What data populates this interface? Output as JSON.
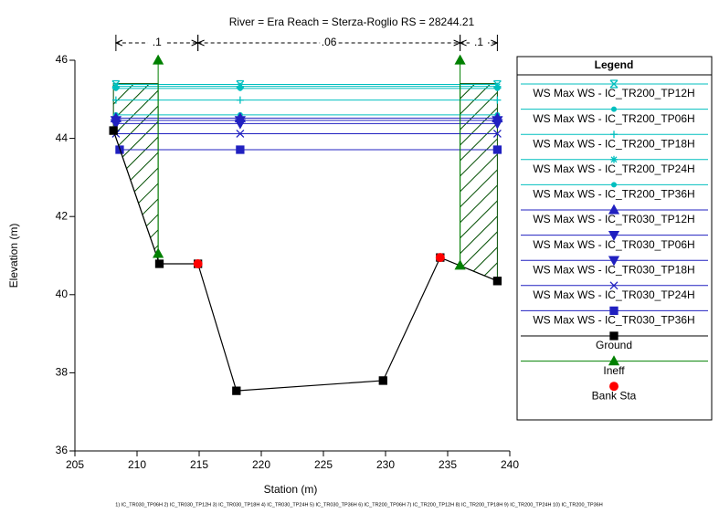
{
  "chart_data": {
    "type": "line",
    "title": "River = Era   Reach = Sterza-Roglio        RS = 28244.21",
    "x_label": "Station (m)",
    "y_label": "Elevation (m)",
    "xlim": [
      205,
      240
    ],
    "ylim": [
      36,
      46
    ],
    "xticks": [
      205,
      210,
      215,
      220,
      225,
      230,
      235,
      240
    ],
    "yticks": [
      36,
      38,
      40,
      42,
      44,
      46
    ],
    "legend_title": "Legend",
    "footer": "1) IC_TR030_TP06H   2) IC_TR030_TP12H   3) IC_TR030_TP18H   4) IC_TR030_TP24H   5) IC_TR030_TP36H   6) IC_TR200_TP06H   7) IC_TR200_TP12H   8) IC_TR200_TP18H   9) IC_TR200_TP24H   10) IC_TR200_TP36H",
    "mannings_n": [
      {
        "label": ".1",
        "x": [
          208.3,
          214.9
        ]
      },
      {
        "label": ".06",
        "x": [
          214.9,
          236.0
        ]
      },
      {
        "label": ".1",
        "x": [
          236.0,
          239.0
        ]
      }
    ],
    "ineffective_elevation": 45.4,
    "series": [
      {
        "name": "WS Max WS - IC_TR200_TP12H",
        "color": "#00bfbf",
        "marker": "xstar",
        "x": [
          208.3,
          218.3,
          239.0
        ],
        "values": [
          45.38,
          45.38,
          45.38
        ]
      },
      {
        "name": "WS Max WS - IC_TR200_TP06H",
        "color": "#00bfbf",
        "marker": "circle",
        "x": [
          208.3,
          218.3,
          239.0
        ],
        "values": [
          45.28,
          45.28,
          45.28
        ]
      },
      {
        "name": "WS Max WS - IC_TR200_TP18H",
        "color": "#00bfbf",
        "marker": "plus",
        "x": [
          208.3,
          218.3,
          239.0
        ],
        "values": [
          44.98,
          44.98,
          44.98
        ]
      },
      {
        "name": "WS Max WS - IC_TR200_TP24H",
        "color": "#00bfbf",
        "marker": "star",
        "x": [
          208.3,
          218.3,
          239.0
        ],
        "values": [
          45.33,
          45.33,
          45.33
        ]
      },
      {
        "name": "WS Max WS - IC_TR200_TP36H",
        "color": "#00bfbf",
        "marker": "circle",
        "x": [
          208.3,
          218.3,
          239.0
        ],
        "values": [
          44.6,
          44.6,
          44.6
        ]
      },
      {
        "name": "WS Max WS - IC_TR030_TP12H",
        "color": "#2020c0",
        "marker": "triangle",
        "x": [
          208.3,
          218.3,
          239.0
        ],
        "values": [
          44.52,
          44.52,
          44.52
        ]
      },
      {
        "name": "WS Max WS - IC_TR030_TP06H",
        "color": "#2020c0",
        "marker": "tridown",
        "x": [
          208.3,
          218.3,
          239.0
        ],
        "values": [
          44.46,
          44.46,
          44.46
        ]
      },
      {
        "name": "WS Max WS - IC_TR030_TP18H",
        "color": "#2020c0",
        "marker": "tridown",
        "x": [
          208.3,
          218.3,
          239.0
        ],
        "values": [
          44.38,
          44.38,
          44.38
        ]
      },
      {
        "name": "WS Max WS - IC_TR030_TP24H",
        "color": "#2020c0",
        "marker": "x",
        "x": [
          208.3,
          218.3,
          239.0
        ],
        "values": [
          44.12,
          44.12,
          44.12
        ]
      },
      {
        "name": "WS Max WS - IC_TR030_TP36H",
        "color": "#2020c0",
        "marker": "square",
        "x": [
          208.6,
          218.3,
          239.0
        ],
        "values": [
          43.71,
          43.71,
          43.71
        ]
      },
      {
        "name": "Ground",
        "color": "#000000",
        "marker": "square",
        "x": [
          208.1,
          211.8,
          214.9,
          218.0,
          229.8,
          234.4,
          239.0
        ],
        "values": [
          44.2,
          40.79,
          40.79,
          37.54,
          37.8,
          40.95,
          40.35
        ]
      },
      {
        "name": "Ineff",
        "color": "#008000",
        "marker": "triangle",
        "x": [
          211.7,
          211.7,
          null,
          236.0,
          236.0
        ],
        "values": [
          41.05,
          46.0,
          null,
          40.75,
          46.0
        ]
      },
      {
        "name": "Bank Sta",
        "color": "#ff0000",
        "marker": "dot",
        "x": [
          214.9,
          234.4
        ],
        "values": [
          40.79,
          40.95
        ]
      }
    ]
  }
}
